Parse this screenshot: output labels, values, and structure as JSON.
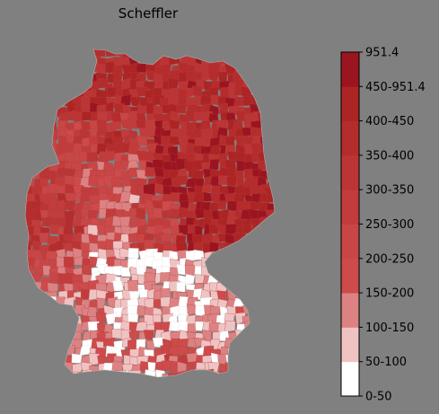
{
  "title": "Scheffler",
  "background_color": "#808080",
  "legend": {
    "top_label": "951.4",
    "bins": [
      {
        "label": "0-50",
        "color": "#ffffff"
      },
      {
        "label": "50-100",
        "color": "#f0c3c3"
      },
      {
        "label": "100-150",
        "color": "#dc8282"
      },
      {
        "label": "150-200",
        "color": "#cd4b4b"
      },
      {
        "label": "200-250",
        "color": "#c84646"
      },
      {
        "label": "250-300",
        "color": "#c23c3c"
      },
      {
        "label": "300-350",
        "color": "#bc3535"
      },
      {
        "label": "350-400",
        "color": "#b52c2c"
      },
      {
        "label": "400-450",
        "color": "#ad2424"
      },
      {
        "label": "450-951.4",
        "color": "#9b1520"
      }
    ]
  },
  "chart_data": {
    "type": "choropleth",
    "title": "Scheffler",
    "region": "Germany (districts)",
    "color_scale_bins": [
      "0-50",
      "50-100",
      "100-150",
      "150-200",
      "200-250",
      "250-300",
      "300-350",
      "350-400",
      "400-450",
      "450-951.4"
    ],
    "max_value": 951.4,
    "regional_pattern": {
      "north": "350-450",
      "north-east": "350-951.4",
      "east": "300-951.4",
      "west": "100-300",
      "south": "0-150"
    }
  }
}
